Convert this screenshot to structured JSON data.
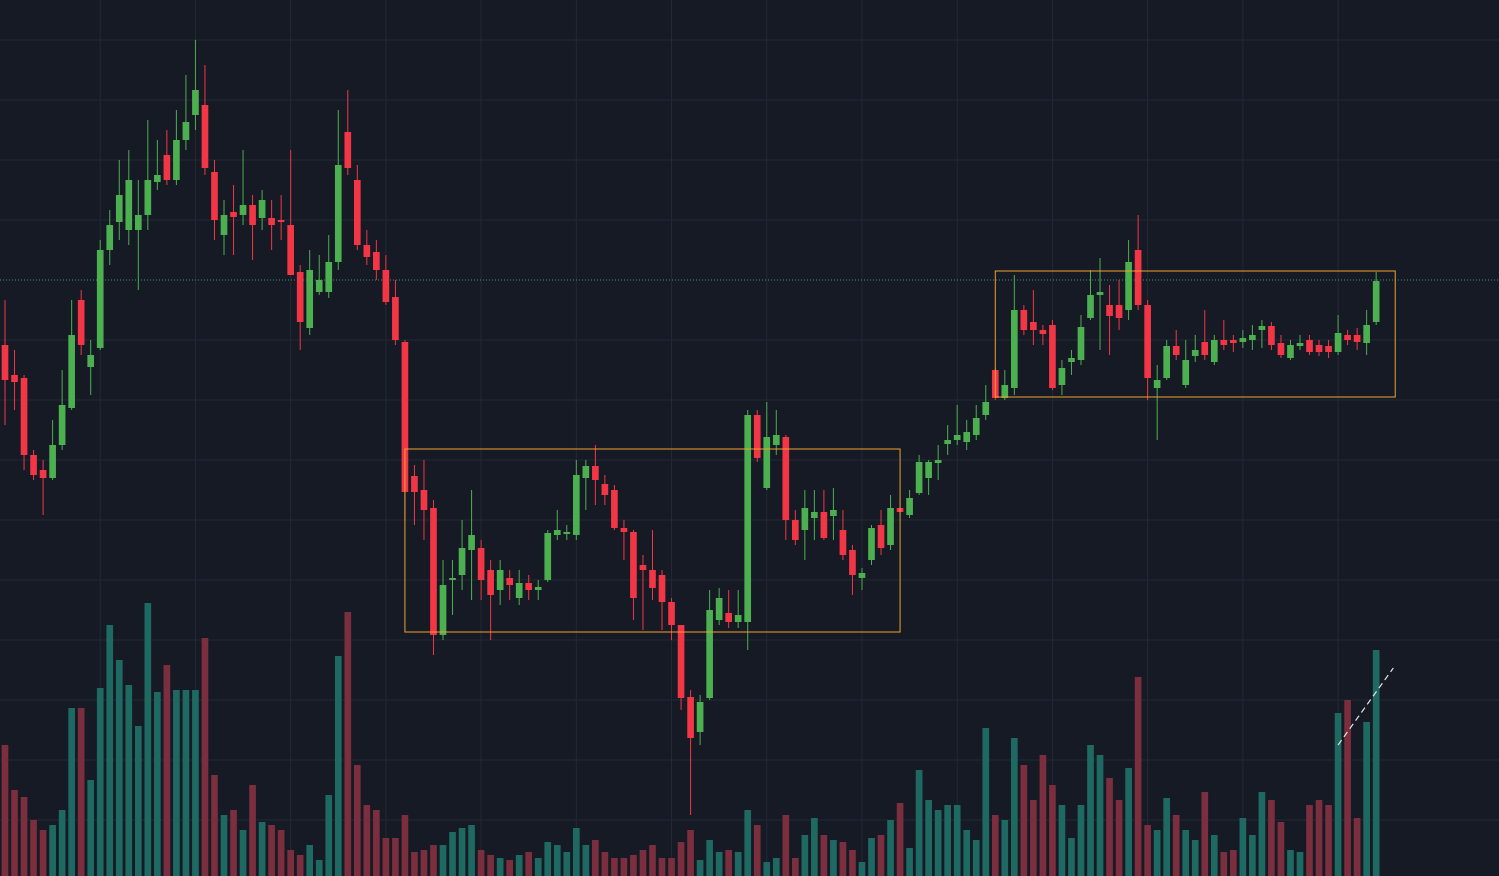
{
  "chart_data": {
    "type": "candlestick",
    "up_color": "#4caf50",
    "down_color": "#f23645",
    "volume_up_color": "#1e6a62",
    "volume_down_color": "#7b2e3d",
    "grid": true,
    "grid_color": "#232836",
    "xlim": [
      -0.525,
      156.9
    ],
    "ylim": [
      124,
      1000
    ],
    "volume_lim": [
      0,
      876
    ],
    "xticks": [
      10,
      20,
      30,
      40,
      50,
      60,
      70,
      80,
      90,
      100,
      110,
      120,
      130,
      140
    ],
    "yticks": [
      180,
      240,
      300,
      360,
      420,
      480,
      540,
      600,
      660,
      780,
      840,
      900,
      960
    ],
    "ohlc": [
      [
        655,
        700,
        575,
        620
      ],
      [
        625,
        650,
        590,
        618
      ],
      [
        622,
        625,
        530,
        545
      ],
      [
        545,
        550,
        520,
        525
      ],
      [
        530,
        540,
        485,
        522
      ],
      [
        522,
        580,
        520,
        555
      ],
      [
        555,
        630,
        550,
        595
      ],
      [
        592,
        700,
        590,
        665
      ],
      [
        700,
        710,
        645,
        655
      ],
      [
        633,
        660,
        605,
        645
      ],
      [
        652,
        760,
        650,
        750
      ],
      [
        750,
        790,
        735,
        775
      ],
      [
        778,
        840,
        760,
        805
      ],
      [
        770,
        850,
        755,
        820
      ],
      [
        770,
        820,
        710,
        785
      ],
      [
        785,
        880,
        770,
        820
      ],
      [
        818,
        860,
        810,
        825
      ],
      [
        845,
        870,
        815,
        820
      ],
      [
        820,
        890,
        815,
        860
      ],
      [
        860,
        925,
        850,
        878
      ],
      [
        885,
        960,
        870,
        910
      ],
      [
        895,
        935,
        825,
        832
      ],
      [
        828,
        840,
        760,
        780
      ],
      [
        765,
        800,
        745,
        785
      ],
      [
        788,
        815,
        745,
        783
      ],
      [
        785,
        850,
        775,
        795
      ],
      [
        795,
        805,
        740,
        775
      ],
      [
        782,
        810,
        770,
        800
      ],
      [
        782,
        800,
        750,
        775
      ],
      [
        780,
        805,
        760,
        778
      ],
      [
        775,
        850,
        725,
        725
      ],
      [
        728,
        735,
        650,
        678
      ],
      [
        672,
        750,
        665,
        730
      ],
      [
        708,
        745,
        705,
        720
      ],
      [
        708,
        765,
        702,
        738
      ],
      [
        738,
        890,
        730,
        835
      ],
      [
        868,
        910,
        825,
        832
      ],
      [
        820,
        835,
        750,
        755
      ],
      [
        755,
        770,
        735,
        743
      ],
      [
        748,
        760,
        720,
        730
      ],
      [
        730,
        745,
        695,
        698
      ],
      [
        703,
        720,
        655,
        660
      ],
      [
        658,
        660,
        480,
        508
      ],
      [
        524,
        535,
        475,
        508
      ],
      [
        510,
        540,
        460,
        490
      ],
      [
        492,
        500,
        345,
        365
      ],
      [
        365,
        440,
        360,
        415
      ],
      [
        420,
        440,
        385,
        422
      ],
      [
        425,
        480,
        410,
        452
      ],
      [
        450,
        510,
        400,
        465
      ],
      [
        452,
        460,
        400,
        420
      ],
      [
        430,
        440,
        360,
        405
      ],
      [
        410,
        440,
        395,
        430
      ],
      [
        422,
        430,
        400,
        415
      ],
      [
        402,
        430,
        395,
        417
      ],
      [
        417,
        425,
        400,
        410
      ],
      [
        410,
        420,
        400,
        413
      ],
      [
        420,
        470,
        418,
        467
      ],
      [
        465,
        490,
        460,
        470
      ],
      [
        466,
        475,
        460,
        468
      ],
      [
        465,
        540,
        460,
        525
      ],
      [
        522,
        540,
        490,
        534
      ],
      [
        534,
        555,
        495,
        520
      ],
      [
        516,
        525,
        495,
        505
      ],
      [
        510,
        515,
        470,
        472
      ],
      [
        472,
        480,
        440,
        468
      ],
      [
        468,
        470,
        380,
        402
      ],
      [
        435,
        445,
        370,
        430
      ],
      [
        430,
        470,
        400,
        412
      ],
      [
        425,
        430,
        370,
        398
      ],
      [
        398,
        402,
        360,
        375
      ],
      [
        375,
        375,
        290,
        302
      ],
      [
        303,
        310,
        185,
        262
      ],
      [
        268,
        305,
        255,
        298
      ],
      [
        302,
        410,
        300,
        390
      ],
      [
        380,
        412,
        375,
        402
      ],
      [
        387,
        410,
        372,
        378
      ],
      [
        378,
        410,
        372,
        385
      ],
      [
        378,
        590,
        350,
        585
      ],
      [
        585,
        590,
        538,
        542
      ],
      [
        512,
        598,
        510,
        563
      ],
      [
        555,
        590,
        545,
        565
      ],
      [
        563,
        565,
        460,
        480
      ],
      [
        480,
        490,
        455,
        460
      ],
      [
        470,
        510,
        440,
        492
      ],
      [
        482,
        510,
        460,
        488
      ],
      [
        488,
        510,
        460,
        462
      ],
      [
        484,
        512,
        460,
        490
      ],
      [
        470,
        490,
        440,
        445
      ],
      [
        450,
        455,
        405,
        425
      ],
      [
        422,
        432,
        410,
        427
      ],
      [
        440,
        475,
        435,
        472
      ],
      [
        475,
        490,
        445,
        452
      ],
      [
        455,
        505,
        450,
        492
      ],
      [
        492,
        500,
        485,
        488
      ],
      [
        485,
        510,
        482,
        502
      ],
      [
        507,
        545,
        505,
        538
      ],
      [
        522,
        540,
        505,
        538
      ],
      [
        537,
        555,
        520,
        540
      ],
      [
        556,
        575,
        545,
        560
      ],
      [
        560,
        595,
        555,
        565
      ],
      [
        558,
        580,
        550,
        568
      ],
      [
        565,
        595,
        560,
        582
      ],
      [
        585,
        615,
        580,
        598
      ],
      [
        630,
        632,
        600,
        602
      ],
      [
        602,
        630,
        600,
        615
      ],
      [
        612,
        725,
        605,
        690
      ],
      [
        690,
        695,
        665,
        670
      ],
      [
        678,
        710,
        655,
        670
      ],
      [
        670,
        675,
        655,
        666
      ],
      [
        675,
        680,
        610,
        612
      ],
      [
        615,
        640,
        605,
        632
      ],
      [
        638,
        650,
        625,
        642
      ],
      [
        640,
        685,
        635,
        673
      ],
      [
        682,
        730,
        680,
        705
      ],
      [
        705,
        742,
        650,
        708
      ],
      [
        695,
        715,
        645,
        684
      ],
      [
        695,
        720,
        670,
        682
      ],
      [
        690,
        760,
        680,
        738
      ],
      [
        750,
        785,
        690,
        695
      ],
      [
        695,
        700,
        600,
        622
      ],
      [
        612,
        635,
        560,
        620
      ],
      [
        622,
        660,
        620,
        654
      ],
      [
        654,
        670,
        640,
        645
      ],
      [
        615,
        660,
        612,
        640
      ],
      [
        644,
        665,
        638,
        650
      ],
      [
        658,
        690,
        640,
        645
      ],
      [
        638,
        665,
        635,
        660
      ],
      [
        660,
        680,
        650,
        655
      ],
      [
        660,
        665,
        648,
        657
      ],
      [
        658,
        670,
        652,
        662
      ],
      [
        660,
        675,
        650,
        665
      ],
      [
        670,
        680,
        652,
        674
      ],
      [
        674,
        678,
        650,
        655
      ],
      [
        657,
        665,
        642,
        645
      ],
      [
        642,
        660,
        640,
        655
      ],
      [
        654,
        665,
        650,
        657
      ],
      [
        660,
        665,
        645,
        648
      ],
      [
        655,
        660,
        644,
        648
      ],
      [
        654,
        660,
        642,
        648
      ],
      [
        648,
        685,
        645,
        667
      ],
      [
        665,
        670,
        655,
        660
      ],
      [
        665,
        672,
        650,
        658
      ],
      [
        657,
        690,
        645,
        675
      ],
      [
        678,
        728,
        675,
        719
      ]
    ],
    "volume": [
      131,
      86,
      79,
      56,
      46,
      51,
      66,
      168,
      168,
      96,
      188,
      251,
      216,
      191,
      150,
      273,
      184,
      211,
      186,
      186,
      186,
      238,
      101,
      61,
      66,
      46,
      91,
      54,
      51,
      46,
      26,
      21,
      31,
      16,
      81,
      220,
      264,
      111,
      71,
      66,
      38,
      38,
      61,
      24,
      26,
      31,
      31,
      44,
      48,
      51,
      26,
      21,
      18,
      16,
      21,
      24,
      18,
      34,
      31,
      24,
      48,
      31,
      36,
      24,
      18,
      18,
      21,
      26,
      31,
      18,
      18,
      34,
      46,
      16,
      36,
      24,
      26,
      24,
      66,
      51,
      14,
      18,
      61,
      18,
      41,
      58,
      41,
      36,
      34,
      26,
      14,
      38,
      41,
      56,
      73,
      28,
      106,
      76,
      66,
      71,
      71,
      46,
      36,
      148,
      61,
      56,
      138,
      111,
      76,
      121,
      91,
      71,
      38,
      71,
      131,
      121,
      98,
      76,
      108,
      199,
      51,
      46,
      78,
      61,
      46,
      36,
      84,
      41,
      24,
      26,
      58,
      41,
      84,
      76,
      54,
      26,
      24,
      71,
      76,
      71,
      163,
      176,
      58,
      154,
      226
    ],
    "boxes": [
      {
        "x": [
          42,
          94
        ],
        "price": [
          368,
          551
        ],
        "color": "#f0a030"
      },
      {
        "x": [
          104,
          146
        ],
        "price": [
          603,
          729
        ],
        "color": "#f0a030"
      }
    ],
    "price_line": {
      "value": 720,
      "color": "#4a8a7e"
    },
    "trend_line": {
      "x": [
        140,
        145.8
      ],
      "volume": [
        131,
        208
      ],
      "color": "#e0e0e0"
    }
  }
}
